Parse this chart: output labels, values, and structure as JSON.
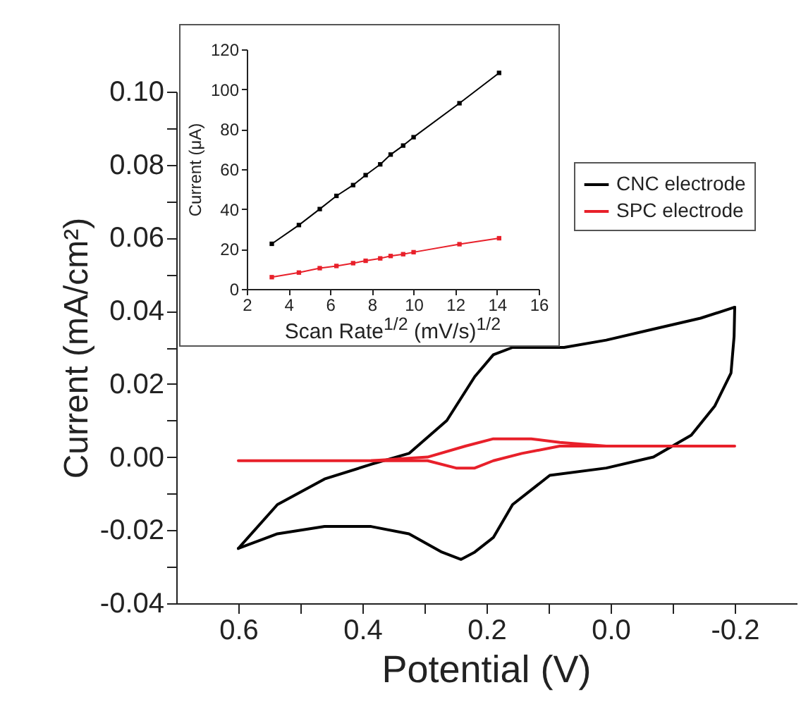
{
  "chart_data": [
    {
      "type": "line",
      "xlabel": "Potential (V)",
      "ylabel": "Current (mA/cm²)",
      "xlim": [
        0.7,
        -0.3
      ],
      "ylim": [
        -0.04,
        0.1
      ],
      "xticks": [
        {
          "value": 0.6,
          "label": "0.6"
        },
        {
          "value": 0.5,
          "label": null
        },
        {
          "value": 0.4,
          "label": "0.4"
        },
        {
          "value": 0.3,
          "label": null
        },
        {
          "value": 0.2,
          "label": "0.2"
        },
        {
          "value": 0.1,
          "label": null
        },
        {
          "value": 0.0,
          "label": "0.0"
        },
        {
          "value": -0.1,
          "label": null
        },
        {
          "value": -0.2,
          "label": "-0.2"
        }
      ],
      "yticks": [
        {
          "value": -0.04,
          "label": "-0.04"
        },
        {
          "value": -0.03,
          "label": null
        },
        {
          "value": -0.02,
          "label": "-0.02"
        },
        {
          "value": -0.01,
          "label": null
        },
        {
          "value": 0,
          "label": "0.00"
        },
        {
          "value": 0.01,
          "label": null
        },
        {
          "value": 0.02,
          "label": "0.02"
        },
        {
          "value": 0.03,
          "label": null
        },
        {
          "value": 0.04,
          "label": "0.04"
        },
        {
          "value": 0.05,
          "label": null
        },
        {
          "value": 0.06,
          "label": "0.06"
        },
        {
          "value": 0.07,
          "label": null
        },
        {
          "value": 0.08,
          "label": "0.08"
        },
        {
          "value": 0.09,
          "label": null
        },
        {
          "value": 0.1,
          "label": "0.10"
        }
      ],
      "legend": "top right",
      "marker": "none",
      "line_style": "solid",
      "grid": false,
      "series": [
        {
          "name": "CNC electrode",
          "color": "#000000",
          "x": [
            0.6,
            0.537,
            0.461,
            0.386,
            0.325,
            0.264,
            0.219,
            0.189,
            0.158,
            0.12,
            0.075,
            0.007,
            -0.069,
            -0.145,
            -0.2
          ],
          "values": [
            -0.025,
            -0.013,
            -0.006,
            -0.002,
            0.001,
            0.01,
            0.022,
            0.028,
            0.03,
            0.03,
            0.03,
            0.032,
            0.035,
            0.038,
            0.041
          ]
        },
        {
          "color": "#000000",
          "x": [
            -0.2,
            -0.199,
            -0.194,
            -0.168,
            -0.13,
            -0.069,
            0.007,
            0.098,
            0.158,
            0.189,
            0.219,
            0.241,
            0.272,
            0.325,
            0.386,
            0.461,
            0.537,
            0.6
          ],
          "values": [
            0.041,
            0.033,
            0.023,
            0.014,
            0.006,
            0.0,
            -0.003,
            -0.005,
            -0.013,
            -0.022,
            -0.026,
            -0.028,
            -0.026,
            -0.021,
            -0.019,
            -0.019,
            -0.021,
            -0.025
          ]
        },
        {
          "name": "SPC electrode",
          "color": "#e8202a",
          "x": [
            0.6,
            0.386,
            0.295,
            0.234,
            0.189,
            0.158,
            0.128,
            0.082,
            0.007,
            -0.2
          ],
          "values": [
            -0.001,
            -0.001,
            0.0,
            0.003,
            0.005,
            0.005,
            0.005,
            0.004,
            0.003,
            0.003
          ]
        },
        {
          "color": "#e8202a",
          "x": [
            0.007,
            0.082,
            0.143,
            0.189,
            0.219,
            0.249,
            0.295,
            0.386
          ],
          "values": [
            0.003,
            0.003,
            0.001,
            -0.001,
            -0.003,
            -0.003,
            -0.001,
            -0.001
          ]
        }
      ]
    },
    {
      "type": "line",
      "xlabel": "Scan Rate$^{1/2}$ (mV/s)$^{1/2}$",
      "ylabel": "Current (μA)",
      "xlim": [
        2,
        16
      ],
      "ylim": [
        0,
        120
      ],
      "xticks": [
        2,
        4,
        6,
        8,
        10,
        12,
        14,
        16
      ],
      "yticks": [
        0,
        20,
        40,
        60,
        80,
        100,
        120
      ],
      "marker": "square",
      "line_style": "solid",
      "grid": false,
      "series": [
        {
          "color": "#000000",
          "x": [
            3.2,
            4.5,
            5.5,
            6.3,
            7.1,
            7.7,
            8.4,
            8.9,
            9.5,
            10,
            12.2,
            14.1
          ],
          "values": [
            22.6,
            32,
            40,
            46.6,
            52,
            57,
            62.4,
            67.3,
            71.8,
            76,
            93,
            108.2
          ]
        },
        {
          "color": "#e8202a",
          "x": [
            3.2,
            4.5,
            5.5,
            6.3,
            7.1,
            7.7,
            8.4,
            8.9,
            9.5,
            10,
            12.2,
            14.1
          ],
          "values": [
            5.9,
            8.2,
            10.4,
            11.5,
            12.9,
            14.1,
            15.3,
            16.5,
            17.4,
            18.4,
            22.4,
            25.4
          ]
        }
      ]
    }
  ]
}
